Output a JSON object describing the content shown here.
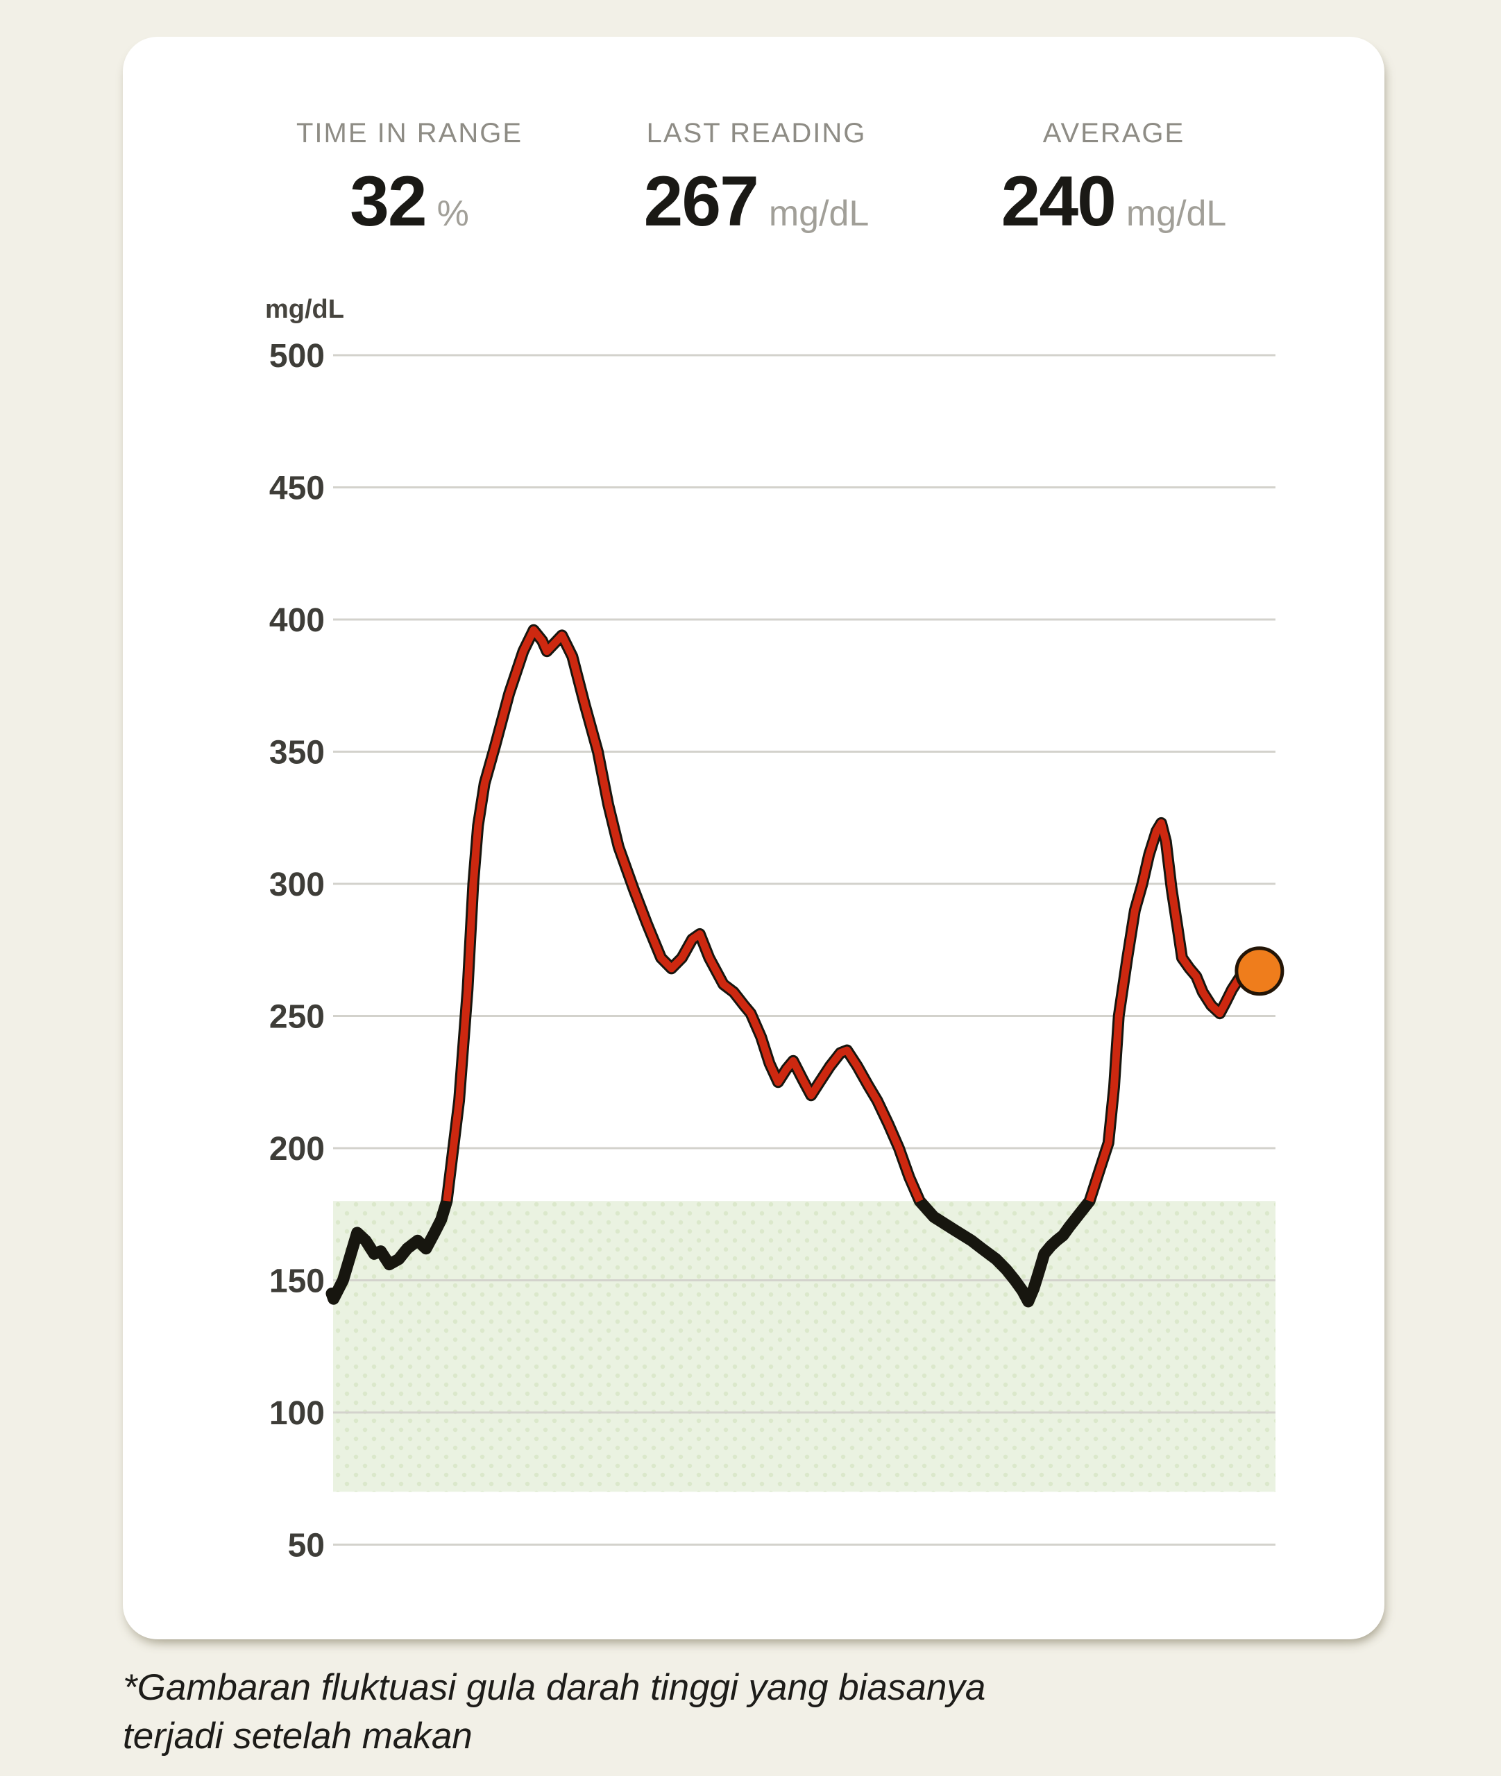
{
  "page": {
    "background": "#F2F0E7",
    "card_background": "#FFFFFF"
  },
  "header_stats": {
    "items": [
      {
        "label": "TIME IN RANGE",
        "value": "32",
        "unit": "%"
      },
      {
        "label": "LAST READING",
        "value": "267",
        "unit": "mg/dL"
      },
      {
        "label": "AVERAGE",
        "value": "240",
        "unit": "mg/dL"
      }
    ]
  },
  "footnote": {
    "line1": "*Gambaran fluktuasi gula darah tinggi yang biasanya",
    "line2": "terjadi setelah makan"
  },
  "chart_data": {
    "type": "line",
    "title": "",
    "ylabel": "mg/dL",
    "ylim": [
      50,
      500
    ],
    "y_ticks": [
      500,
      450,
      400,
      350,
      300,
      250,
      200,
      150,
      100,
      50
    ],
    "x_ticks": [],
    "grid": true,
    "legend": "none",
    "target_range": {
      "low": 70,
      "high": 180
    },
    "colors": {
      "in_range_line": "#17160F",
      "above_range_line": "#CD2810",
      "marker_fill": "#EF7D1C",
      "marker_outline": "#231507",
      "target_band": "#EAF2E1",
      "band_dots": "#DBE8CB",
      "gridline": "#D3D2CC",
      "tick_text": "#3E3D38",
      "axis_unit_text": "#46443E"
    },
    "series": [
      {
        "name": "glucose_mg_dl",
        "points": [
          [
            0,
            145
          ],
          [
            0.2,
            143
          ],
          [
            1.2,
            150
          ],
          [
            2.7,
            168
          ],
          [
            3.6,
            165
          ],
          [
            4.5,
            160
          ],
          [
            5.2,
            161
          ],
          [
            6.1,
            156
          ],
          [
            7.1,
            158
          ],
          [
            8,
            162
          ],
          [
            9.1,
            165
          ],
          [
            10,
            162
          ],
          [
            10.9,
            168
          ],
          [
            11.6,
            173
          ],
          [
            12.2,
            180
          ],
          [
            13.5,
            218
          ],
          [
            14.4,
            260
          ],
          [
            15,
            300
          ],
          [
            15.5,
            322
          ],
          [
            16.2,
            338
          ],
          [
            17.3,
            352
          ],
          [
            18.8,
            372
          ],
          [
            20.3,
            388
          ],
          [
            21.4,
            396
          ],
          [
            22.3,
            392
          ],
          [
            22.8,
            388
          ],
          [
            23.6,
            391
          ],
          [
            24.4,
            394
          ],
          [
            25.5,
            386
          ],
          [
            26.8,
            368
          ],
          [
            28.2,
            350
          ],
          [
            29.3,
            330
          ],
          [
            30.4,
            314
          ],
          [
            32,
            298
          ],
          [
            33.4,
            285
          ],
          [
            34.9,
            272
          ],
          [
            36,
            268
          ],
          [
            37.1,
            272
          ],
          [
            38.2,
            279
          ],
          [
            39,
            281
          ],
          [
            40,
            272
          ],
          [
            41.5,
            262
          ],
          [
            42.6,
            259
          ],
          [
            43.7,
            254
          ],
          [
            44.4,
            251
          ],
          [
            45.5,
            242
          ],
          [
            46.4,
            232
          ],
          [
            47.3,
            225
          ],
          [
            48.2,
            230
          ],
          [
            48.9,
            233
          ],
          [
            49.9,
            226
          ],
          [
            50.8,
            220
          ],
          [
            51.7,
            225
          ],
          [
            52.8,
            231
          ],
          [
            53.9,
            236
          ],
          [
            54.6,
            237
          ],
          [
            55.7,
            231
          ],
          [
            56.8,
            224
          ],
          [
            57.8,
            218
          ],
          [
            59,
            209
          ],
          [
            60.1,
            200
          ],
          [
            61.2,
            189
          ],
          [
            62.3,
            180
          ],
          [
            63.8,
            174
          ],
          [
            66,
            169
          ],
          [
            67.8,
            165
          ],
          [
            68.9,
            162
          ],
          [
            70.4,
            158
          ],
          [
            71.5,
            154
          ],
          [
            72.4,
            150
          ],
          [
            73.2,
            146
          ],
          [
            73.8,
            142
          ],
          [
            74.4,
            147
          ],
          [
            75,
            154
          ],
          [
            75.5,
            160
          ],
          [
            76.2,
            163
          ],
          [
            76.8,
            165
          ],
          [
            77.5,
            167
          ],
          [
            78.1,
            170
          ],
          [
            79.2,
            175
          ],
          [
            80.3,
            180
          ],
          [
            81.3,
            191
          ],
          [
            82.3,
            202
          ],
          [
            82.9,
            223
          ],
          [
            83.4,
            250
          ],
          [
            84.3,
            272
          ],
          [
            85.1,
            290
          ],
          [
            85.9,
            300
          ],
          [
            86.6,
            311
          ],
          [
            87.4,
            320
          ],
          [
            87.9,
            323
          ],
          [
            88.4,
            316
          ],
          [
            89,
            298
          ],
          [
            89.6,
            284
          ],
          [
            90.1,
            272
          ],
          [
            90.9,
            268
          ],
          [
            91.6,
            265
          ],
          [
            92.3,
            259
          ],
          [
            93.2,
            254
          ],
          [
            94.1,
            251
          ],
          [
            94.7,
            255
          ],
          [
            95.4,
            260
          ],
          [
            96.3,
            265
          ],
          [
            97.1,
            267
          ]
        ]
      }
    ],
    "last_reading_marker": {
      "x": 98.3,
      "value": 267
    }
  }
}
